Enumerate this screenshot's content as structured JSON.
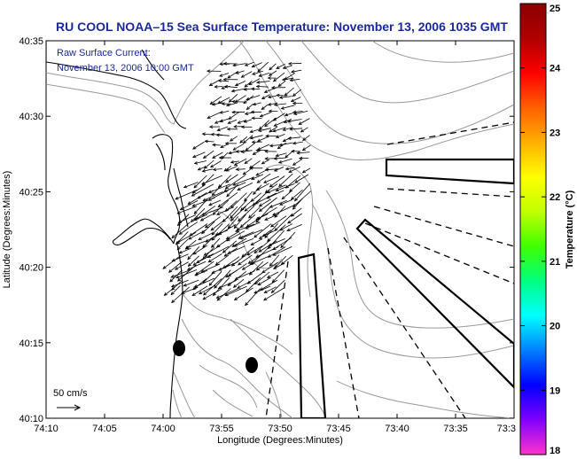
{
  "title": "RU COOL  NOAA–15  Sea Surface Temperature:  November 13, 2006 1035 GMT",
  "annotation": {
    "line1": "Raw Surface Current:",
    "line2": "November 13, 2006 10:00 GMT"
  },
  "scale": {
    "label": "50 cm/s"
  },
  "x_axis": {
    "label": "Longitude (Degrees:Minutes)",
    "ticks": [
      "74:10",
      "74:05",
      "74:00",
      "73:55",
      "73:50",
      "73:45",
      "73:40",
      "73:35",
      "73:3"
    ]
  },
  "y_axis": {
    "label": "Latitude (Degrees:Minutes)",
    "ticks": [
      "40:35",
      "40:30",
      "40:25",
      "40:20",
      "40:15",
      "40:10"
    ]
  },
  "colorbar": {
    "label": "Temperature (°C)",
    "ticks": [
      "25",
      "24",
      "23",
      "22",
      "21",
      "20",
      "19",
      "18"
    ],
    "range": [
      18,
      25
    ],
    "colors": [
      "#ff33cc",
      "#8000ff",
      "#0000ff",
      "#0080ff",
      "#00ffff",
      "#00ff80",
      "#40ff00",
      "#c0ff00",
      "#ffff00",
      "#ffb000",
      "#ff6000",
      "#ff0000",
      "#b00000",
      "#8b0000"
    ]
  },
  "colors": {
    "title": "#1a2a9a",
    "contours": "#999999",
    "coast": "#000000"
  }
}
